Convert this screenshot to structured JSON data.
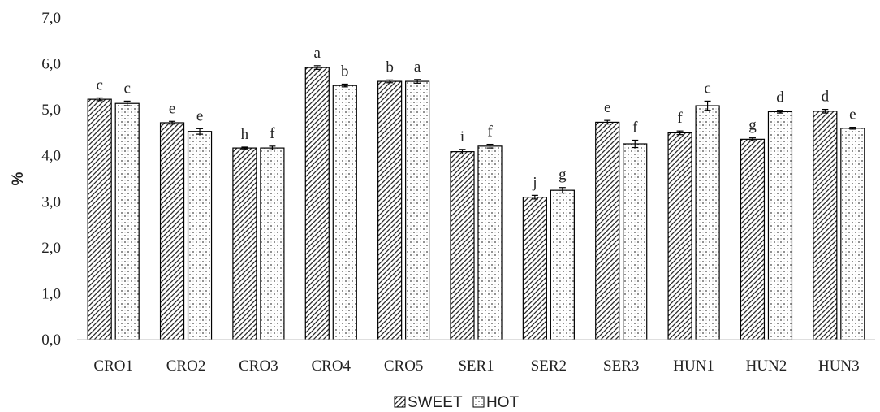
{
  "chart_data": {
    "type": "bar",
    "ylabel": "%",
    "ylim": [
      0,
      7
    ],
    "ytick_step": 1,
    "ytick_labels": [
      "0,0",
      "1,0",
      "2,0",
      "3,0",
      "4,0",
      "5,0",
      "6,0",
      "7,0"
    ],
    "grid": false,
    "legend_position": "bottom-center",
    "categories": [
      "CRO1",
      "CRO2",
      "CRO3",
      "CRO4",
      "CRO5",
      "SER1",
      "SER2",
      "SER3",
      "HUN1",
      "HUN2",
      "HUN3"
    ],
    "series": [
      {
        "name": "SWEET",
        "pattern": "diagonal-hatch",
        "values": [
          5.23,
          4.72,
          4.17,
          5.92,
          5.62,
          4.09,
          3.1,
          4.73,
          4.5,
          4.36,
          4.97
        ],
        "errors": [
          0.03,
          0.03,
          0.02,
          0.04,
          0.03,
          0.05,
          0.04,
          0.04,
          0.04,
          0.03,
          0.04
        ],
        "labels": [
          "c",
          "e",
          "h",
          "a",
          "b",
          "i",
          "j",
          "e",
          "f",
          "g",
          "d"
        ]
      },
      {
        "name": "HOT",
        "pattern": "dotted",
        "values": [
          5.14,
          4.53,
          4.17,
          5.53,
          5.62,
          4.21,
          3.25,
          4.26,
          5.09,
          4.96,
          4.6
        ],
        "errors": [
          0.05,
          0.06,
          0.04,
          0.03,
          0.04,
          0.04,
          0.06,
          0.08,
          0.1,
          0.03,
          0.02
        ],
        "labels": [
          "c",
          "e",
          "f",
          "b",
          "a",
          "f",
          "g",
          "f",
          "c",
          "d",
          "e"
        ]
      }
    ]
  }
}
